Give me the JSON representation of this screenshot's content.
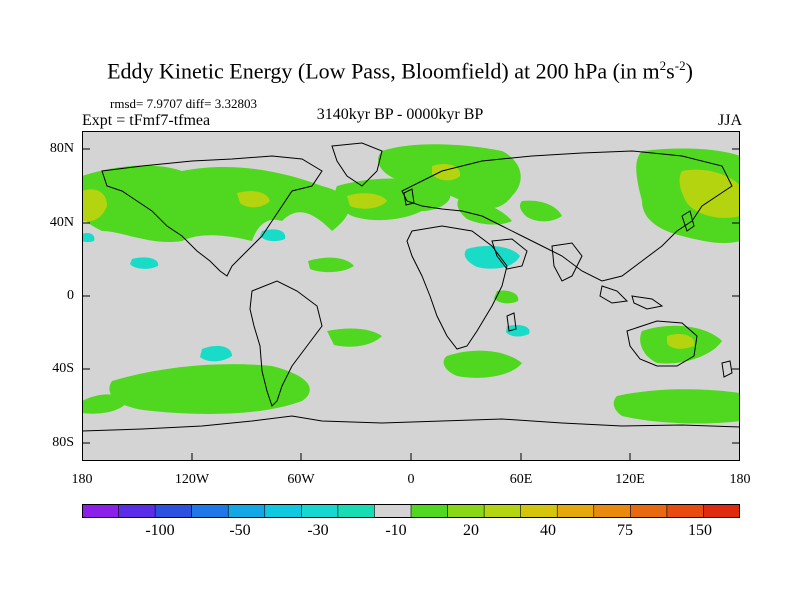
{
  "title": {
    "main": "Eddy Kinetic Energy (Low Pass, Bloomfield) at 200 hPa (in m",
    "sup1": "2",
    "mid": "s",
    "sup2": "-2",
    "end": ")"
  },
  "stats": "rmsd= 7.9707 diff= 3.32803",
  "expt": "Expt = tFmf7-tfmea",
  "period": "3140kyr BP - 0000kyr BP",
  "season": "JJA",
  "y_labels": [
    "80N",
    "40N",
    "0",
    "40S",
    "80S"
  ],
  "x_labels": [
    "180",
    "120W",
    "60W",
    "0",
    "60E",
    "120E",
    "180"
  ],
  "colorbar": {
    "colors": [
      "#8c1fe8",
      "#5a2ee8",
      "#2c50e0",
      "#1e78e8",
      "#12a8e6",
      "#10c8e0",
      "#16d8d0",
      "#18dcb4",
      "#d4d4d4",
      "#50d820",
      "#88d818",
      "#b4d410",
      "#d4c40c",
      "#e4a80c",
      "#e88a0c",
      "#e86a10",
      "#e84a10",
      "#e02a10"
    ],
    "labels": [
      "-100",
      "-50",
      "-30",
      "-10",
      "20",
      "40",
      "75",
      "150"
    ]
  },
  "colors": {
    "land_bg": "#d4d4d4",
    "positive_low": "#50d820",
    "positive_mid": "#b4d410",
    "negative_low": "#18dcc8"
  }
}
